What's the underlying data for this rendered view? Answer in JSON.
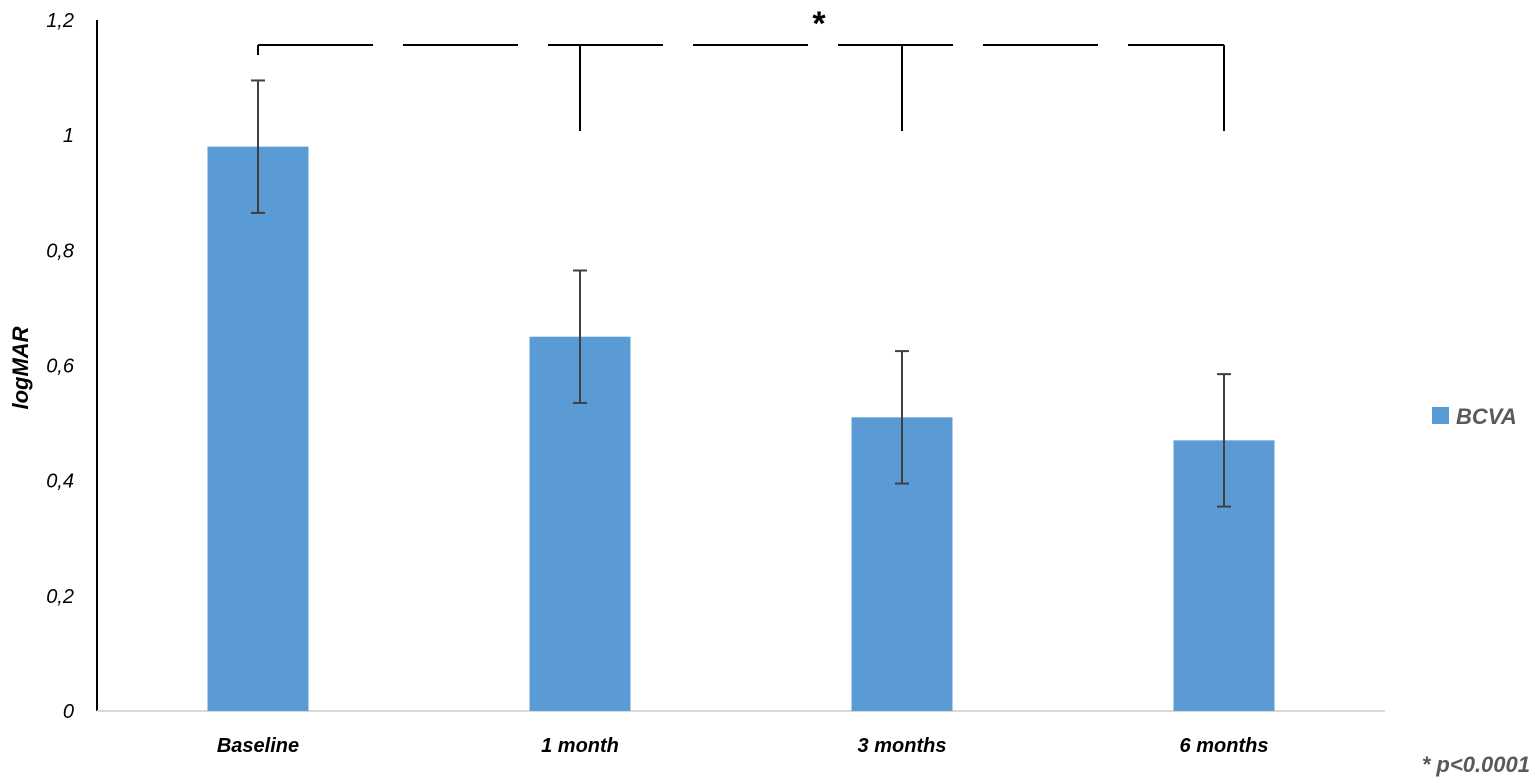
{
  "chart_data": {
    "type": "bar",
    "categories": [
      "Baseline",
      "1 month",
      "3 months",
      "6 months"
    ],
    "series": [
      {
        "name": "BCVA",
        "values": [
          0.98,
          0.65,
          0.51,
          0.47
        ],
        "error": [
          0.115,
          0.115,
          0.115,
          0.115
        ],
        "color": "#5b9bd5"
      }
    ],
    "ylabel": "logMAR",
    "ylim": [
      0,
      1.2
    ],
    "yticks": [
      "0",
      "0,2",
      "0,4",
      "0,6",
      "0,8",
      "1",
      "1,2"
    ],
    "ytick_values": [
      0,
      0.2,
      0.4,
      0.6,
      0.8,
      1.0,
      1.2
    ],
    "grid": false,
    "legend_position": "right",
    "significance": {
      "symbol": "*",
      "from": "Baseline",
      "to": [
        "1 month",
        "3 months",
        "6 months"
      ],
      "footnote": "* p<0.0001"
    }
  }
}
